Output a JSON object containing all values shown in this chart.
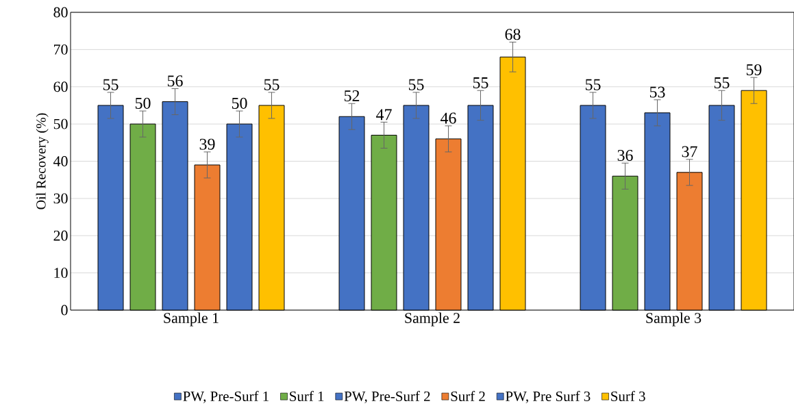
{
  "chart_data": {
    "type": "bar",
    "ylabel": "Oil Recovery  (%)",
    "categories": [
      "Sample 1",
      "Sample 2",
      "Sample 3"
    ],
    "ylim": [
      0,
      80
    ],
    "yticks": [
      0,
      10,
      20,
      30,
      40,
      50,
      60,
      70,
      80
    ],
    "grid": "y",
    "legend": "bottom",
    "data_labels": true,
    "series": [
      {
        "name": "PW, Pre-Surf 1",
        "color": "#4472c4",
        "values": [
          55,
          52,
          55
        ],
        "errors": [
          3.5,
          3.5,
          3.5
        ]
      },
      {
        "name": "Surf 1",
        "color": "#70ad47",
        "values": [
          50,
          47,
          36
        ],
        "errors": [
          3.5,
          3.5,
          3.5
        ]
      },
      {
        "name": "PW, Pre-Surf 2",
        "color": "#4472c4",
        "values": [
          56,
          55,
          53
        ],
        "errors": [
          3.5,
          3.5,
          3.5
        ]
      },
      {
        "name": "Surf 2",
        "color": "#ed7d31",
        "values": [
          39,
          46,
          37
        ],
        "errors": [
          3.5,
          3.5,
          3.5
        ]
      },
      {
        "name": "PW, Pre Surf 3",
        "color": "#4472c4",
        "values": [
          50,
          55,
          55
        ],
        "errors": [
          3.5,
          4,
          4
        ]
      },
      {
        "name": "Surf 3",
        "color": "#ffc000",
        "values": [
          55,
          68,
          59
        ],
        "errors": [
          3.5,
          4,
          3.5
        ]
      }
    ]
  }
}
